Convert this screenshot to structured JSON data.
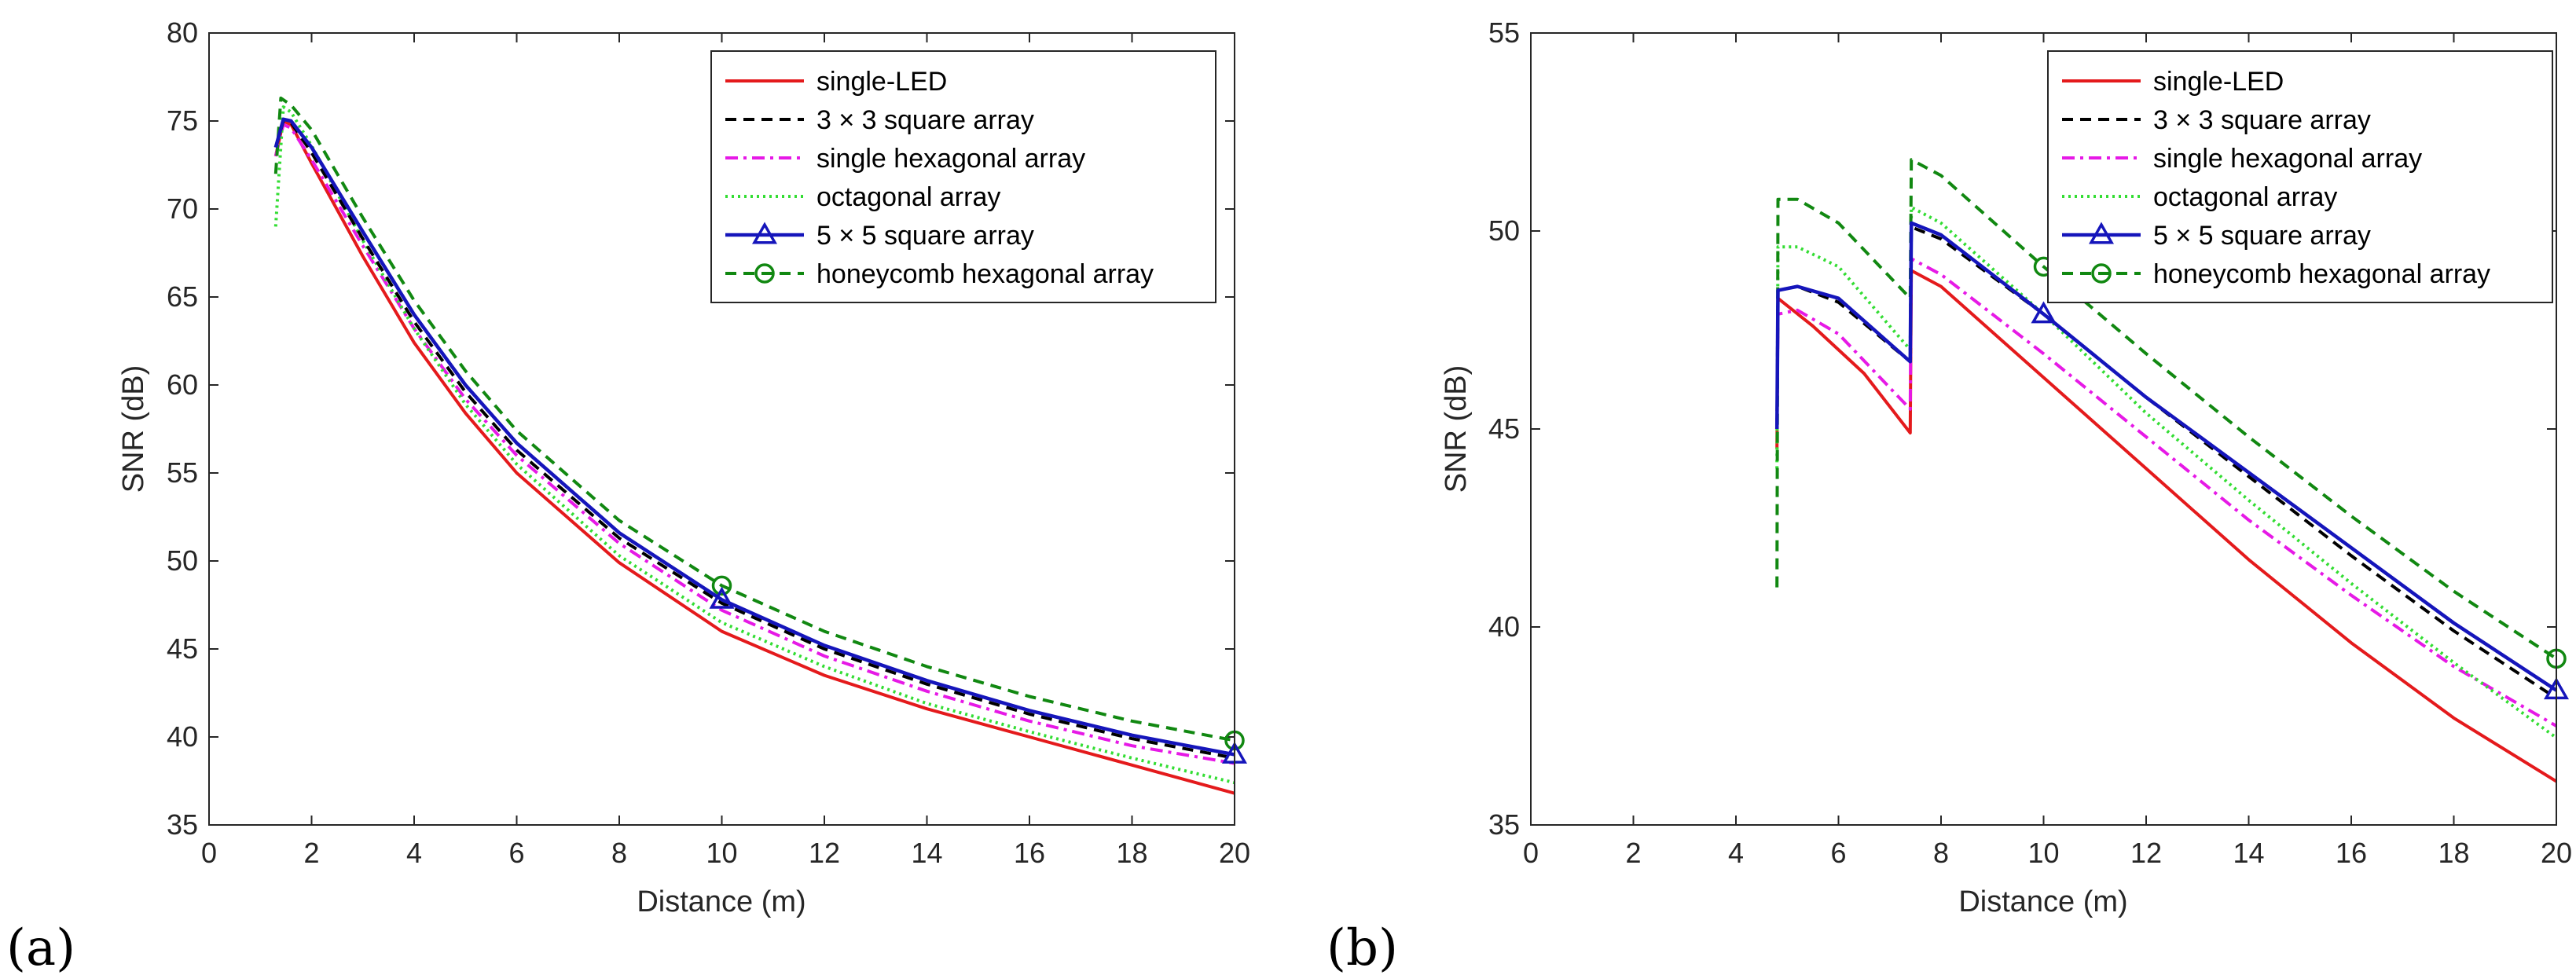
{
  "colors": {
    "single_led": "#e41a1c",
    "square3": "#000000",
    "hexagonal": "#e619e6",
    "octagonal": "#33dd33",
    "square5": "#1515bb",
    "honeycomb": "#118811"
  },
  "legend_order": [
    "single_led",
    "square3",
    "hexagonal",
    "octagonal",
    "square5",
    "honeycomb"
  ],
  "legend": {
    "single_led": "single-LED",
    "square3": "3 × 3 square array",
    "hexagonal": "single hexagonal array",
    "octagonal": "octagonal array",
    "square5": "5 × 5 square array",
    "honeycomb": "honeycomb hexagonal array"
  },
  "chart_data": [
    {
      "panel": "(a)",
      "type": "line",
      "xlabel": "Distance (m)",
      "ylabel": "SNR (dB)",
      "xlim": [
        0,
        20
      ],
      "ylim": [
        35,
        80
      ],
      "xticks": [
        0,
        2,
        4,
        6,
        8,
        10,
        12,
        14,
        16,
        18,
        20
      ],
      "yticks": [
        35,
        40,
        45,
        50,
        55,
        60,
        65,
        70,
        75,
        80
      ],
      "legend_position": "top-right",
      "series": [
        {
          "key": "single_led",
          "name": "single-LED",
          "x": [
            1.3,
            1.45,
            1.6,
            2,
            3,
            4,
            5,
            6,
            8,
            10,
            12,
            14,
            16,
            18,
            20
          ],
          "y": [
            73,
            75,
            74.8,
            72.6,
            67.3,
            62.4,
            58.4,
            55.0,
            49.9,
            46.0,
            43.5,
            41.6,
            40.0,
            38.4,
            36.8
          ]
        },
        {
          "key": "square3",
          "name": "3 × 3 square array",
          "x": [
            1.3,
            1.45,
            1.6,
            2,
            3,
            4,
            5,
            6,
            8,
            10,
            12,
            14,
            16,
            18,
            20
          ],
          "y": [
            73.5,
            75,
            74.9,
            73.2,
            68.3,
            63.6,
            59.6,
            56.3,
            51.3,
            47.6,
            45.0,
            43.0,
            41.3,
            39.9,
            38.8
          ]
        },
        {
          "key": "hexagonal",
          "name": "single hexagonal array",
          "x": [
            1.3,
            1.45,
            1.6,
            2,
            3,
            4,
            5,
            6,
            8,
            10,
            12,
            14,
            16,
            18,
            20
          ],
          "y": [
            73,
            74.8,
            74.6,
            72.8,
            67.9,
            63.2,
            59.2,
            56.0,
            51.0,
            47.2,
            44.6,
            42.6,
            40.9,
            39.5,
            38.5
          ]
        },
        {
          "key": "octagonal",
          "name": "octagonal array",
          "x": [
            1.3,
            1.45,
            1.6,
            2,
            3,
            4,
            5,
            6,
            8,
            10,
            12,
            14,
            16,
            18,
            20
          ],
          "y": [
            69,
            75.8,
            75.5,
            73.6,
            68.2,
            63.2,
            58.9,
            55.5,
            50.3,
            46.5,
            44.0,
            41.9,
            40.3,
            38.8,
            37.4
          ]
        },
        {
          "key": "square5",
          "name": "5 × 5 square array",
          "x": [
            1.3,
            1.45,
            1.6,
            2,
            3,
            4,
            5,
            6,
            8,
            10,
            12,
            14,
            16,
            18,
            20
          ],
          "y": [
            73.5,
            75.1,
            75.0,
            73.5,
            68.7,
            64.0,
            60.0,
            56.7,
            51.6,
            47.8,
            45.2,
            43.2,
            41.5,
            40.1,
            39.0
          ],
          "markers_at": [
            10,
            20
          ]
        },
        {
          "key": "honeycomb",
          "name": "honeycomb hexagonal array",
          "x": [
            1.3,
            1.4,
            1.6,
            2,
            3,
            4,
            5,
            6,
            8,
            10,
            12,
            14,
            16,
            18,
            20
          ],
          "y": [
            72,
            76.3,
            75.9,
            74.5,
            69.5,
            64.8,
            60.8,
            57.4,
            52.3,
            48.6,
            46.0,
            44.0,
            42.3,
            40.9,
            39.8
          ],
          "markers_at": [
            10,
            20
          ]
        }
      ]
    },
    {
      "panel": "(b)",
      "type": "line",
      "xlabel": "Distance (m)",
      "ylabel": "SNR (dB)",
      "xlim": [
        0,
        20
      ],
      "ylim": [
        35,
        55
      ],
      "xticks": [
        0,
        2,
        4,
        6,
        8,
        10,
        12,
        14,
        16,
        18,
        20
      ],
      "yticks": [
        35,
        40,
        45,
        50,
        55
      ],
      "legend_position": "top-right",
      "series": [
        {
          "key": "single_led",
          "name": "single-LED",
          "x": [
            4.8,
            4.82,
            5.5,
            6.5,
            7.4,
            7.42,
            8,
            10,
            12,
            14,
            16,
            18,
            20
          ],
          "y": [
            44.5,
            48.3,
            47.6,
            46.4,
            44.9,
            49.0,
            48.6,
            46.3,
            44.0,
            41.7,
            39.6,
            37.7,
            36.1
          ]
        },
        {
          "key": "square3",
          "name": "3 × 3 square array",
          "x": [
            4.8,
            4.82,
            5.2,
            6,
            7.4,
            7.42,
            8,
            10,
            12,
            14,
            16,
            18,
            20
          ],
          "y": [
            45,
            48.5,
            48.6,
            48.2,
            46.7,
            50.1,
            49.8,
            47.9,
            45.8,
            43.8,
            41.8,
            39.9,
            38.2
          ]
        },
        {
          "key": "hexagonal",
          "name": "single hexagonal array",
          "x": [
            4.8,
            4.82,
            5.2,
            6,
            7.4,
            7.42,
            8,
            10,
            12,
            14,
            16,
            18,
            20
          ],
          "y": [
            45,
            47.9,
            48.0,
            47.4,
            45.5,
            49.3,
            48.9,
            46.9,
            44.8,
            42.7,
            40.8,
            39.0,
            37.5
          ]
        },
        {
          "key": "octagonal",
          "name": "octagonal array",
          "x": [
            4.8,
            4.82,
            5.2,
            6,
            7.4,
            7.42,
            8,
            10,
            12,
            14,
            16,
            18,
            20
          ],
          "y": [
            44,
            49.6,
            49.6,
            49.1,
            47.0,
            50.6,
            50.2,
            47.9,
            45.4,
            43.2,
            41.1,
            39.1,
            37.2
          ]
        },
        {
          "key": "square5",
          "name": "5 × 5 square array",
          "x": [
            4.8,
            4.82,
            5.2,
            6,
            7.4,
            7.42,
            8,
            10,
            12,
            14,
            16,
            18,
            20
          ],
          "y": [
            45,
            48.5,
            48.6,
            48.3,
            46.7,
            50.2,
            49.9,
            47.9,
            45.8,
            43.9,
            42.0,
            40.1,
            38.4
          ],
          "markers_at": [
            10,
            20
          ]
        },
        {
          "key": "honeycomb",
          "name": "honeycomb hexagonal array",
          "x": [
            4.8,
            4.82,
            5.2,
            6,
            7.4,
            7.42,
            8,
            10,
            12,
            14,
            16,
            18,
            20
          ],
          "y": [
            41,
            50.8,
            50.8,
            50.2,
            48.3,
            51.8,
            51.4,
            49.1,
            46.9,
            44.8,
            42.8,
            40.9,
            39.2
          ],
          "markers_at": [
            10,
            20
          ]
        }
      ]
    }
  ]
}
